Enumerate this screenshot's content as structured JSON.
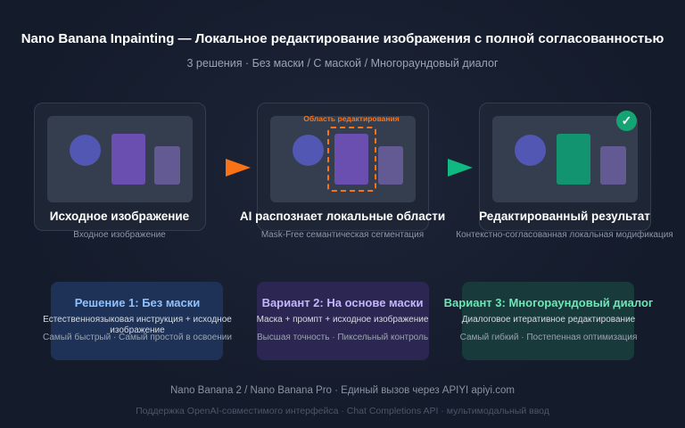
{
  "header": {
    "title": "Nano Banana Inpainting — Локальное редактирование изображения с полной согласованностью",
    "subtitle": "3 решения · Без маски / С маской / Многораундовый диалог"
  },
  "steps": [
    {
      "title": "Исходное изображение",
      "desc": "Входное изображение"
    },
    {
      "title": "AI распознает локальные области",
      "desc": "Mask-Free семантическая сегментация",
      "region_label": "Область редактирования"
    },
    {
      "title": "Редактированный результат",
      "desc": "Контекстно-согласованная локальная модификация"
    }
  ],
  "options": [
    {
      "title": "Решение 1: Без маски",
      "line1": "Естественноязыковая инструкция + исходное изображение",
      "line2": "Самый быстрый · Самый простой в освоении",
      "color": "#8ec1ff"
    },
    {
      "title": "Вариант 2: На основе маски",
      "line1": "Маска + промпт + исходное изображение",
      "line2": "Высшая точность · Пиксельный контроль",
      "color": "#c4b5fd"
    },
    {
      "title": "Вариант 3: Многораундовый диалог",
      "line1": "Диалоговое итеративное редактирование",
      "line2": "Самый гибкий · Постепенная оптимизация",
      "color": "#6ee7b7"
    }
  ],
  "footer": {
    "line1": "Nano Banana 2 / Nano Banana Pro · Единый вызов через APIYI apiyi.com",
    "line2": "Поддержка OpenAI-совместимого интерфейса · Chat Completions API · мультимодальный ввод"
  },
  "colors": {
    "accent_orange": "#f97316",
    "accent_green": "#10b981",
    "purple": "#6a4fb0"
  }
}
